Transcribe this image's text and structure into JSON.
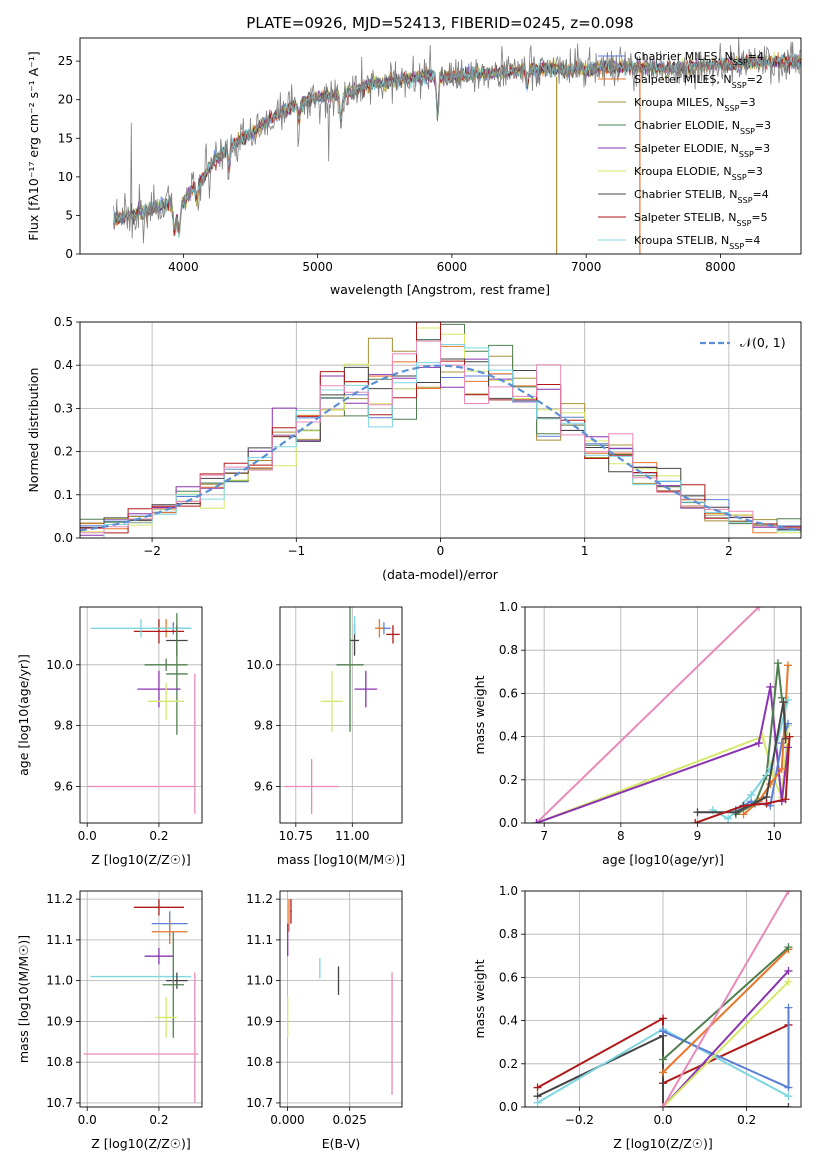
{
  "chart_data": [
    {
      "id": "spectrum",
      "type": "line",
      "title": "PLATE=0926, MJD=52413, FIBERID=0245, z=0.098",
      "xlabel": "wavelength [Angstrom, rest frame]",
      "ylabel": "Flux [fλ10⁻¹⁷ erg cm⁻² s⁻¹ A⁻¹]",
      "xlim": [
        3230,
        8600
      ],
      "ylim": [
        0,
        28
      ],
      "xticks": [
        4000,
        5000,
        6000,
        7000,
        8000
      ],
      "yticks": [
        0,
        5,
        10,
        15,
        20,
        25
      ],
      "grid": false,
      "legend_position": "upper-right",
      "observed_color": "#808080",
      "continuum_knots": {
        "x": [
          3480,
          3600,
          3700,
          3800,
          3900,
          3960,
          4050,
          4150,
          4250,
          4350,
          4500,
          4650,
          4800,
          4950,
          5100,
          5250,
          5400,
          5600,
          5800,
          6000,
          6200,
          6400,
          6600,
          6800,
          7000,
          7200,
          7400,
          7600,
          7800,
          8000,
          8200,
          8400,
          8600
        ],
        "y": [
          4.5,
          5.0,
          5.5,
          6.0,
          6.5,
          5.5,
          8.0,
          10.0,
          12.5,
          14.0,
          15.5,
          17.5,
          19.0,
          20.0,
          20.5,
          21.0,
          22.0,
          22.5,
          23.0,
          23.0,
          23.5,
          23.5,
          24.0,
          24.0,
          24.0,
          24.2,
          24.2,
          24.0,
          24.3,
          24.5,
          24.8,
          25.0,
          25.0
        ]
      },
      "series": [
        {
          "name": "Chabrier MILES, N_SSP=4",
          "color": "#5b7fd6"
        },
        {
          "name": "Salpeter MILES, N_SSP=2",
          "color": "#e8762b"
        },
        {
          "name": "Kroupa MILES, N_SSP=3",
          "color": "#a89038"
        },
        {
          "name": "Chabrier ELODIE, N_SSP=3",
          "color": "#4f7f4f"
        },
        {
          "name": "Salpeter ELODIE, N_SSP=3",
          "color": "#8a34b0"
        },
        {
          "name": "Kroupa ELODIE, N_SSP=3",
          "color": "#d6e86a"
        },
        {
          "name": "Chabrier STELIB, N_SSP=4",
          "color": "#444444"
        },
        {
          "name": "Salpeter STELIB, N_SSP=5",
          "color": "#b01a1a"
        },
        {
          "name": "Kroupa STELIB, N_SSP=4",
          "color": "#7dd6e0"
        }
      ]
    },
    {
      "id": "residuals",
      "type": "histogram",
      "xlabel": "(data-model)/error",
      "ylabel": "Normed distribution",
      "xlim": [
        -2.5,
        2.5
      ],
      "ylim": [
        0,
        0.5
      ],
      "xticks": [
        -2,
        -1,
        0,
        1,
        2
      ],
      "yticks": [
        0.0,
        0.1,
        0.2,
        0.3,
        0.4,
        0.5
      ],
      "grid": true,
      "legend_position": "upper-right",
      "legend_label": "𝒩(0, 1)",
      "normal_color": "#5b8fd6",
      "bins": 30,
      "series_colors": [
        "#5b7fd6",
        "#e8762b",
        "#a89038",
        "#4f7f4f",
        "#8a34b0",
        "#d6e86a",
        "#444444",
        "#b01a1a",
        "#7dd6e0",
        "#e88aba"
      ]
    },
    {
      "id": "age_vs_z",
      "type": "errorbar",
      "xlabel": "Z [log10(Z/Z☉)]",
      "ylabel": "age  [log10(age/yr)]",
      "xlim": [
        -0.02,
        0.32
      ],
      "ylim": [
        9.48,
        10.19
      ],
      "xticks": [
        0.0,
        0.2
      ],
      "yticks": [
        9.6,
        9.8,
        10.0
      ],
      "grid": true,
      "points": [
        {
          "x": 0.24,
          "xerr": 0.05,
          "y": 10.12,
          "yerr": 0.02,
          "color": "#5b7fd6"
        },
        {
          "x": 0.22,
          "xerr": 0.04,
          "y": 10.12,
          "yerr": 0.03,
          "color": "#e8762b"
        },
        {
          "x": 0.25,
          "xerr": 0.03,
          "y": 10.08,
          "yerr": 0.05,
          "color": "#444444"
        },
        {
          "x": 0.2,
          "xerr": 0.07,
          "y": 10.11,
          "yerr": 0.04,
          "color": "#b01a1a"
        },
        {
          "x": 0.15,
          "xerr": 0.14,
          "y": 10.12,
          "yerr": 0.03,
          "color": "#7dd6e0"
        },
        {
          "x": 0.22,
          "xerr": 0.06,
          "y": 10.0,
          "yerr": 0.02,
          "color": "#4f7f4f"
        },
        {
          "x": 0.25,
          "xerr": 0.03,
          "y": 9.97,
          "yerr": 0.2,
          "color": "#4f7f4f"
        },
        {
          "x": 0.2,
          "xerr": 0.06,
          "y": 9.92,
          "yerr": 0.06,
          "color": "#8a34b0"
        },
        {
          "x": 0.22,
          "xerr": 0.05,
          "y": 9.88,
          "yerr": 0.06,
          "color": "#d6e86a"
        },
        {
          "x": 0.15,
          "xerr": 0.15,
          "y": 9.6,
          "yerr": 0.0,
          "color": "#e88aba"
        },
        {
          "x": 0.3,
          "xerr": 0.0,
          "y": 9.74,
          "yerr": 0.23,
          "color": "#e88aba"
        }
      ]
    },
    {
      "id": "age_vs_mass",
      "type": "errorbar",
      "xlabel": "mass [log10(M/M☉)]",
      "ylabel": "",
      "xlim": [
        10.68,
        11.22
      ],
      "ylim": [
        9.48,
        10.19
      ],
      "xticks": [
        10.75,
        11.0
      ],
      "xtick_labels": [
        "10.75",
        "11.00"
      ],
      "yticks": [
        9.6,
        9.8,
        10.0
      ],
      "grid": true,
      "points": [
        {
          "x": 11.14,
          "xerr": 0.03,
          "y": 10.12,
          "yerr": 0.02,
          "color": "#5b7fd6"
        },
        {
          "x": 11.12,
          "xerr": 0.02,
          "y": 10.12,
          "yerr": 0.03,
          "color": "#e8762b"
        },
        {
          "x": 11.18,
          "xerr": 0.03,
          "y": 10.1,
          "yerr": 0.03,
          "color": "#b01a1a"
        },
        {
          "x": 11.01,
          "xerr": 0.02,
          "y": 10.08,
          "yerr": 0.05,
          "color": "#444444"
        },
        {
          "x": 11.01,
          "xerr": 0.005,
          "y": 10.13,
          "yerr": 0.03,
          "color": "#7dd6e0"
        },
        {
          "x": 10.99,
          "xerr": 0.06,
          "y": 10.0,
          "yerr": 0.22,
          "color": "#4f7f4f"
        },
        {
          "x": 11.06,
          "xerr": 0.05,
          "y": 9.92,
          "yerr": 0.06,
          "color": "#8a34b0"
        },
        {
          "x": 10.91,
          "xerr": 0.05,
          "y": 9.88,
          "yerr": 0.1,
          "color": "#d6e86a"
        },
        {
          "x": 10.82,
          "xerr": 0.12,
          "y": 9.6,
          "yerr": 0.09,
          "color": "#e88aba"
        }
      ]
    },
    {
      "id": "massweight_vs_age",
      "type": "line",
      "xlabel": "age  [log10(age/yr)]",
      "ylabel": "mass weight",
      "xlim": [
        6.75,
        10.35
      ],
      "ylim": [
        0,
        1
      ],
      "xticks": [
        7,
        8,
        9,
        10
      ],
      "yticks": [
        0.0,
        0.2,
        0.4,
        0.6,
        0.8,
        1.0
      ],
      "grid": true,
      "series": [
        {
          "color": "#e88aba",
          "x": [
            6.9,
            9.8
          ],
          "y": [
            0.0,
            1.0
          ]
        },
        {
          "color": "#d6e86a",
          "x": [
            6.9,
            9.85,
            10.0,
            10.1,
            10.18
          ],
          "y": [
            0.0,
            0.4,
            0.2,
            0.12,
            0.45
          ]
        },
        {
          "color": "#8a34b0",
          "x": [
            6.9,
            9.8,
            9.95,
            10.1,
            10.18
          ],
          "y": [
            0.0,
            0.37,
            0.63,
            0.1,
            0.35
          ]
        },
        {
          "color": "#5b7fd6",
          "x": [
            9.5,
            9.7,
            9.95,
            10.1,
            10.18
          ],
          "y": [
            0.06,
            0.1,
            0.08,
            0.37,
            0.46
          ]
        },
        {
          "color": "#e8762b",
          "x": [
            9.6,
            9.8,
            9.95,
            10.1,
            10.18
          ],
          "y": [
            0.04,
            0.1,
            0.18,
            0.25,
            0.73
          ]
        },
        {
          "color": "#4f7f4f",
          "x": [
            9.5,
            9.75,
            9.9,
            10.05,
            10.1
          ],
          "y": [
            0.04,
            0.09,
            0.22,
            0.74,
            0.58
          ]
        },
        {
          "color": "#7dd6e0",
          "x": [
            9.2,
            9.4,
            9.7,
            9.95,
            10.18
          ],
          "y": [
            0.06,
            0.02,
            0.13,
            0.25,
            0.57
          ]
        },
        {
          "color": "#444444",
          "x": [
            9.0,
            9.5,
            9.9,
            10.12,
            10.15
          ],
          "y": [
            0.05,
            0.05,
            0.12,
            0.56,
            0.39
          ]
        },
        {
          "color": "#b01a1a",
          "x": [
            8.97,
            9.6,
            9.9,
            10.15,
            10.2
          ],
          "y": [
            0.0,
            0.08,
            0.09,
            0.11,
            0.4
          ]
        }
      ]
    },
    {
      "id": "mass_vs_z",
      "type": "errorbar",
      "xlabel": "Z [log10(Z/Z☉)]",
      "ylabel": "mass [log10(M/M☉)]",
      "xlim": [
        -0.02,
        0.32
      ],
      "ylim": [
        10.69,
        11.22
      ],
      "xticks": [
        0.0,
        0.2
      ],
      "yticks": [
        10.7,
        10.8,
        10.9,
        11.0,
        11.1,
        11.2
      ],
      "grid": true,
      "points": [
        {
          "x": 0.2,
          "xerr": 0.07,
          "y": 11.18,
          "yerr": 0.02,
          "color": "#b01a1a"
        },
        {
          "x": 0.23,
          "xerr": 0.05,
          "y": 11.14,
          "yerr": 0.03,
          "color": "#5b7fd6"
        },
        {
          "x": 0.23,
          "xerr": 0.05,
          "y": 11.12,
          "yerr": 0.03,
          "color": "#e8762b"
        },
        {
          "x": 0.2,
          "xerr": 0.04,
          "y": 11.06,
          "yerr": 0.02,
          "color": "#8a34b0"
        },
        {
          "x": 0.15,
          "xerr": 0.14,
          "y": 11.01,
          "yerr": 0.0,
          "color": "#7dd6e0"
        },
        {
          "x": 0.25,
          "xerr": 0.03,
          "y": 11.0,
          "yerr": 0.02,
          "color": "#444444"
        },
        {
          "x": 0.24,
          "xerr": 0.03,
          "y": 10.99,
          "yerr": 0.13,
          "color": "#4f7f4f"
        },
        {
          "x": 0.22,
          "xerr": 0.03,
          "y": 10.91,
          "yerr": 0.05,
          "color": "#d6e86a"
        },
        {
          "x": 0.15,
          "xerr": 0.16,
          "y": 10.82,
          "yerr": 0.0,
          "color": "#e88aba"
        },
        {
          "x": 0.3,
          "xerr": 0.0,
          "y": 10.86,
          "yerr": 0.16,
          "color": "#e88aba"
        }
      ]
    },
    {
      "id": "mass_vs_ebv",
      "type": "errorbar",
      "xlabel": "E(B-V)",
      "ylabel": "",
      "xlim": [
        -0.003,
        0.046
      ],
      "ylim": [
        10.69,
        11.22
      ],
      "xticks": [
        0.0,
        0.025
      ],
      "xtick_labels": [
        "0.000",
        "0.025"
      ],
      "yticks": [
        10.7,
        10.8,
        10.9,
        11.0,
        11.1,
        11.2
      ],
      "grid": true,
      "points": [
        {
          "x": 0.0014,
          "xerr": 0.0003,
          "y": 11.17,
          "yerr": 0.03,
          "color": "#b01a1a"
        },
        {
          "x": 0.0006,
          "xerr": 0.0,
          "y": 11.16,
          "yerr": 0.04,
          "color": "#e8762b"
        },
        {
          "x": 0.0001,
          "xerr": 0.0,
          "y": 11.1,
          "yerr": 0.04,
          "color": "#8a34b0"
        },
        {
          "x": 0.0001,
          "xerr": 0.0,
          "y": 10.91,
          "yerr": 0.05,
          "color": "#d6e86a"
        },
        {
          "x": 0.013,
          "xerr": 0.0,
          "y": 11.03,
          "yerr": 0.025,
          "color": "#7dd6e0"
        },
        {
          "x": 0.0205,
          "xerr": 0.0,
          "y": 11.0,
          "yerr": 0.035,
          "color": "#444444"
        },
        {
          "x": 0.042,
          "xerr": 0.0,
          "y": 10.87,
          "yerr": 0.15,
          "color": "#e88aba"
        }
      ]
    },
    {
      "id": "massweight_vs_z",
      "type": "line",
      "xlabel": "Z [log10(Z/Z☉)]",
      "ylabel": "mass weight",
      "xlim": [
        -0.33,
        0.33
      ],
      "ylim": [
        0,
        1
      ],
      "xticks": [
        -0.2,
        0.0,
        0.2
      ],
      "xtick_labels": [
        "−0.2",
        "0.0",
        "0.2"
      ],
      "yticks": [
        0.0,
        0.2,
        0.4,
        0.6,
        0.8,
        1.0
      ],
      "grid": true,
      "series": [
        {
          "color": "#b01a1a",
          "x": [
            -0.3,
            0.0,
            0.0,
            0.3
          ],
          "y": [
            0.09,
            0.41,
            0.11,
            0.38
          ]
        },
        {
          "color": "#444444",
          "x": [
            -0.3,
            0.0,
            0.0,
            0.3
          ],
          "y": [
            0.05,
            0.33,
            0.0,
            0.0
          ]
        },
        {
          "color": "#7dd6e0",
          "x": [
            -0.3,
            0.0,
            0.3
          ],
          "y": [
            0.02,
            0.36,
            0.05
          ]
        },
        {
          "color": "#5b7fd6",
          "x": [
            0.0,
            0.3,
            0.3
          ],
          "y": [
            0.35,
            0.09,
            0.46
          ]
        },
        {
          "color": "#e8762b",
          "x": [
            0.0,
            0.3
          ],
          "y": [
            0.16,
            0.73
          ]
        },
        {
          "color": "#4f7f4f",
          "x": [
            0.0,
            0.3
          ],
          "y": [
            0.22,
            0.74
          ]
        },
        {
          "color": "#8a34b0",
          "x": [
            0.0,
            0.3
          ],
          "y": [
            0.0,
            0.63
          ]
        },
        {
          "color": "#d6e86a",
          "x": [
            0.0,
            0.3
          ],
          "y": [
            0.0,
            0.58
          ]
        },
        {
          "color": "#e88aba",
          "x": [
            0.0,
            0.3
          ],
          "y": [
            0.0,
            1.0
          ]
        }
      ]
    }
  ]
}
